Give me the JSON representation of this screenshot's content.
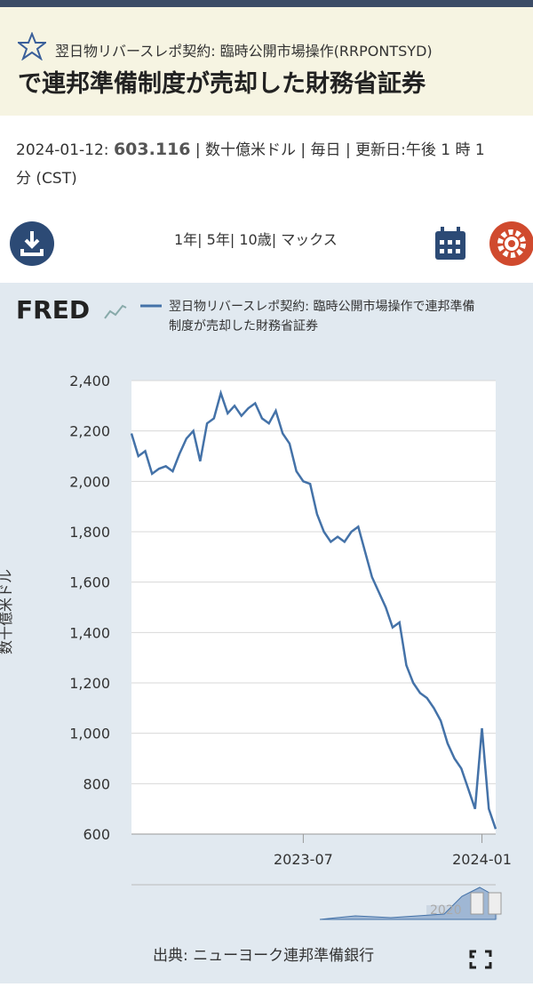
{
  "header": {
    "title_line1": "翌日物リバースレポ契約: 臨時公開市場操作(RRPONTSYD)",
    "title_line2": "で連邦準備制度が売却した財務省証券"
  },
  "info": {
    "date": "2024-01-12:",
    "value": "603.116",
    "details": "| 数十億米ドル | 毎日 | 更新日:午後 1 時 1",
    "details2": "分 (CST)"
  },
  "ranges": [
    "1年|",
    "5年|",
    "10歳|",
    "マックス"
  ],
  "footer": {
    "source": "出典: ニューヨーク連邦準備銀行"
  },
  "navigator": {
    "label": "2020"
  },
  "chart_data": {
    "type": "line",
    "logo": "FRED",
    "legend": "翌日物リバースレポ契約: 臨時公開市場操作で連邦準備",
    "legend2": "制度が売却した財務省証券",
    "y_label": "数十億米ドル",
    "categories": [
      null,
      null,
      null,
      null,
      null,
      null,
      null,
      null,
      null,
      null,
      null,
      null,
      null,
      null,
      null,
      null,
      null,
      null,
      null,
      null,
      null,
      null,
      null,
      null,
      null,
      "2023-07",
      null,
      null,
      null,
      null,
      null,
      null,
      null,
      null,
      null,
      null,
      null,
      null,
      null,
      null,
      null,
      null,
      null,
      null,
      null,
      null,
      null,
      null,
      null,
      null,
      null,
      "2024-01",
      null,
      null
    ],
    "series": [
      {
        "name": "翌日物リバースレポ契約: 臨時公開市場操作で連邦準備制度が売却した財務省証券",
        "color": "#4472a8",
        "values": [
          2190,
          2100,
          2120,
          2030,
          2050,
          2060,
          2040,
          2110,
          2170,
          2200,
          2080,
          2230,
          2250,
          2350,
          2270,
          2300,
          2260,
          2290,
          2310,
          2250,
          2230,
          2280,
          2190,
          2150,
          2040,
          2000,
          1990,
          1870,
          1800,
          1760,
          1780,
          1760,
          1800,
          1820,
          1720,
          1620,
          1560,
          1500,
          1420,
          1440,
          1270,
          1200,
          1160,
          1140,
          1100,
          1050,
          960,
          900,
          860,
          780,
          700,
          1020,
          700,
          620
        ]
      }
    ],
    "ylim": [
      600,
      2400
    ],
    "yticks": [
      600,
      800,
      {
        "value": 1000,
        "label": "1,000"
      },
      {
        "value": 1200,
        "label": "1,200"
      },
      {
        "value": 1400,
        "label": "1,400"
      },
      {
        "value": 1600,
        "label": "1,600"
      },
      {
        "value": 1800,
        "label": "1,800"
      },
      {
        "value": 2000,
        "label": "2,000"
      },
      {
        "value": 2200,
        "label": "2,200"
      },
      {
        "value": 2400,
        "label": "2,400"
      }
    ],
    "grid": true
  }
}
